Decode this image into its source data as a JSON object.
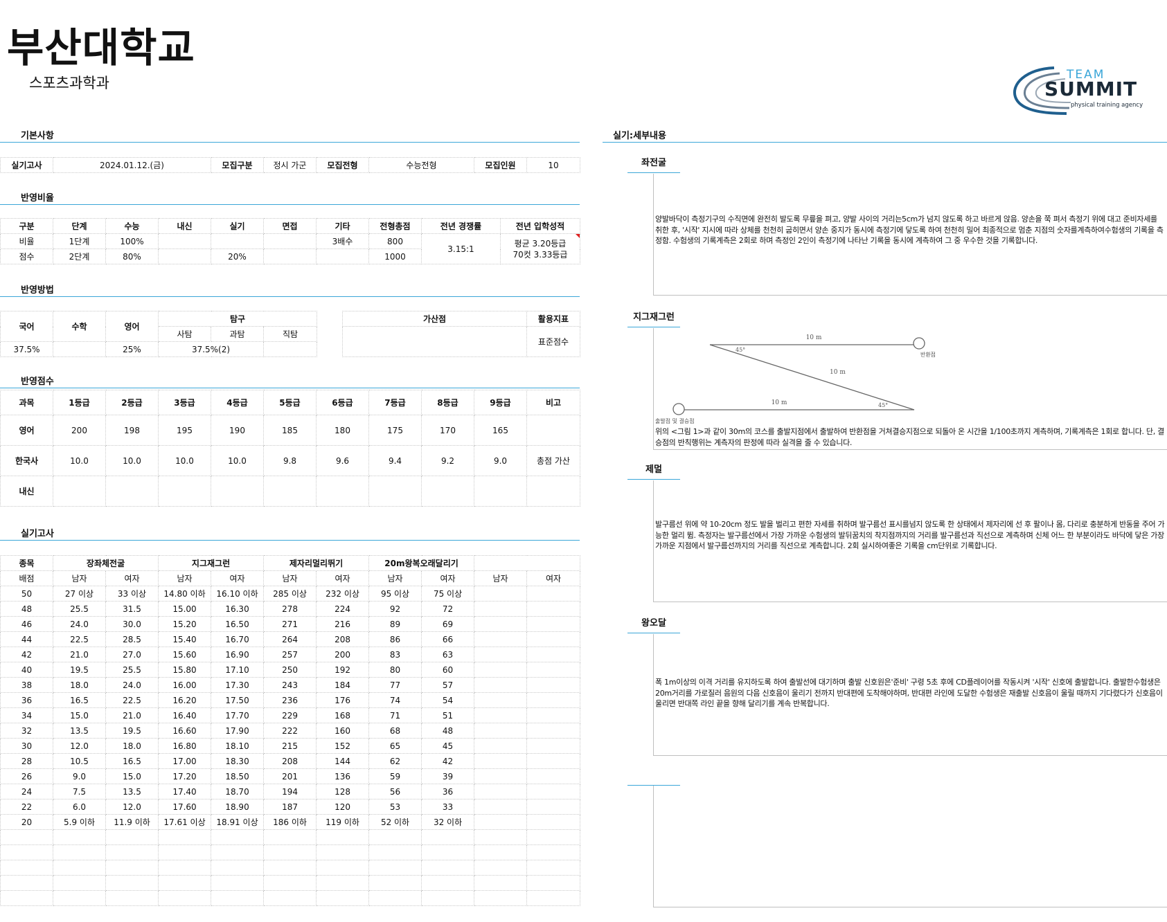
{
  "university": "부산대학교",
  "department": "스포츠과학과",
  "logo": {
    "line1": "TEAM",
    "line2": "SUMMIT",
    "line3": "physical training agency",
    "icon": "swoosh-icon"
  },
  "colors": {
    "accent": "#3aa6d8",
    "text": "#111111",
    "logo_blue": "#1f5f8e"
  },
  "sections": {
    "basic": "기본사항",
    "ratio": "반영비율",
    "method": "반영방법",
    "score": "반영점수",
    "practical": "실기고사",
    "details": "실기:세부내용"
  },
  "basic": {
    "exam_label": "실기고사",
    "exam_value": "2024.01.12.(금)",
    "type_label": "모집구분",
    "type_value": "정시 가군",
    "track_label": "모집전형",
    "track_value": "수능전형",
    "quota_label": "모집인원",
    "quota_value": "10"
  },
  "ratio": {
    "headers": [
      "구분",
      "단계",
      "수능",
      "내신",
      "실기",
      "면접",
      "기타",
      "전형총점",
      "전년 경쟁률",
      "전년 입학성적"
    ],
    "row1": {
      "label": "비율",
      "stage": "1단계",
      "suneung": "100%",
      "naesin": "",
      "silgi": "",
      "interview": "",
      "etc": "3배수",
      "total": "800"
    },
    "row2": {
      "label": "점수",
      "stage": "2단계",
      "suneung": "80%",
      "naesin": "",
      "silgi": "20%",
      "interview": "",
      "etc": "",
      "total": "1000"
    },
    "competition": "3.15:1",
    "grade1": "평균 3.20등급",
    "grade2": "70컷 3.33등급"
  },
  "method": {
    "korean": "국어",
    "math": "수학",
    "english": "영어",
    "inquiry": "탐구",
    "social": "사탐",
    "science": "과탐",
    "vocational": "직탐",
    "korean_val": "37.5%",
    "math_val": "",
    "english_val": "25%",
    "inquiry_val": "37.5%(2)",
    "bonus_label": "가산점",
    "index_label": "활용지표",
    "index_val": "표준점수"
  },
  "score": {
    "headers": [
      "과목",
      "1등급",
      "2등급",
      "3등급",
      "4등급",
      "5등급",
      "6등급",
      "7등급",
      "8등급",
      "9등급",
      "비고"
    ],
    "rows": [
      [
        "영어",
        "200",
        "198",
        "195",
        "190",
        "185",
        "180",
        "175",
        "170",
        "165",
        ""
      ],
      [
        "한국사",
        "10.0",
        "10.0",
        "10.0",
        "10.0",
        "9.8",
        "9.6",
        "9.4",
        "9.2",
        "9.0",
        "총점 가산"
      ],
      [
        "내신",
        "",
        "",
        "",
        "",
        "",
        "",
        "",
        "",
        "",
        ""
      ]
    ]
  },
  "practical": {
    "event_label": "종목",
    "points_label": "배점",
    "events": [
      "장좌체전굴",
      "지그재그런",
      "제자리멀리뛰기",
      "20m왕복오래달리기",
      ""
    ],
    "male": "남자",
    "female": "여자",
    "rows": [
      [
        "50",
        "27 이상",
        "33 이상",
        "14.80 이하",
        "16.10 이하",
        "285 이상",
        "232 이상",
        "95 이상",
        "75 이상"
      ],
      [
        "48",
        "25.5",
        "31.5",
        "15.00",
        "16.30",
        "278",
        "224",
        "92",
        "72"
      ],
      [
        "46",
        "24.0",
        "30.0",
        "15.20",
        "16.50",
        "271",
        "216",
        "89",
        "69"
      ],
      [
        "44",
        "22.5",
        "28.5",
        "15.40",
        "16.70",
        "264",
        "208",
        "86",
        "66"
      ],
      [
        "42",
        "21.0",
        "27.0",
        "15.60",
        "16.90",
        "257",
        "200",
        "83",
        "63"
      ],
      [
        "40",
        "19.5",
        "25.5",
        "15.80",
        "17.10",
        "250",
        "192",
        "80",
        "60"
      ],
      [
        "38",
        "18.0",
        "24.0",
        "16.00",
        "17.30",
        "243",
        "184",
        "77",
        "57"
      ],
      [
        "36",
        "16.5",
        "22.5",
        "16.20",
        "17.50",
        "236",
        "176",
        "74",
        "54"
      ],
      [
        "34",
        "15.0",
        "21.0",
        "16.40",
        "17.70",
        "229",
        "168",
        "71",
        "51"
      ],
      [
        "32",
        "13.5",
        "19.5",
        "16.60",
        "17.90",
        "222",
        "160",
        "68",
        "48"
      ],
      [
        "30",
        "12.0",
        "18.0",
        "16.80",
        "18.10",
        "215",
        "152",
        "65",
        "45"
      ],
      [
        "28",
        "10.5",
        "16.5",
        "17.00",
        "18.30",
        "208",
        "144",
        "62",
        "42"
      ],
      [
        "26",
        "9.0",
        "15.0",
        "17.20",
        "18.50",
        "201",
        "136",
        "59",
        "39"
      ],
      [
        "24",
        "7.5",
        "13.5",
        "17.40",
        "18.70",
        "194",
        "128",
        "56",
        "36"
      ],
      [
        "22",
        "6.0",
        "12.0",
        "17.60",
        "18.90",
        "187",
        "120",
        "53",
        "33"
      ],
      [
        "20",
        "5.9 이하",
        "11.9 이하",
        "17.61 이상",
        "18.91 이상",
        "186 이하",
        "119 이하",
        "52 이하",
        "32 이하"
      ]
    ]
  },
  "details": {
    "sit_reach": {
      "title": "좌전굴",
      "text": "양발바닥이 측정기구의 수직면에 완전히 발도록 무릎을 펴고, 양발 사이의 거리는5cm가 넘지 않도록 하고 바르게 앉음. 양손을 쭉 펴서 측정기 위에 대고 준비자세를 취한 후, '시작' 지시에 따라 상체를 천천히 굽히면서 양손 중지가 동시에 측정기에 닿도록 하여 천천히 밀어 최종적으로 멈춘 지점의 숫자를계측하여수험생의 기록을 측정함. 수험생의 기록계측은 2회로 하며 측정인 2인이 측정기에 나타난 기록을 동시에 계측하여 그 중 우수한 것을 기록합니다."
    },
    "zigzag": {
      "title": "지그재그런",
      "dist_top": "10 m",
      "dist_mid": "10 m",
      "dist_bottom": "10 m",
      "angle_top": "45°",
      "angle_bottom": "45°",
      "turn_label": "반환점",
      "start_label": "출발점 및 결승점",
      "text": "위의 <그림 1>과 같이 30m의 코스를 출발지점에서 출발하여 반환점을 거쳐결승지점으로 되돌아 온 시간을 1/100초까지 계측하며, 기록계측은 1회로 합니다. 단, 결승점의 반칙행위는 계측자의 판정에 따라 실격을 줄 수 있습니다."
    },
    "long_jump": {
      "title": "제멀",
      "text": "발구름선 위에 약 10-20cm 정도 발을 벌리고 편한 자세를 취하며 발구름선 표시를넘지 않도록 한 상태에서 제자리에 선 후 팔이나 몸, 다리로 충분하게 반동을 주어 가능한 멀리 뜀. 측정자는 발구름선에서 가장 가까운 수험생의 발뒤꿈치의 착지점까지의 거리를 발구름선과 직선으로 계측하며 신체 어느 한 부분이라도 바닥에 닿은 가장 가까운 지점에서 발구름선까지의 거리를 직선으로 계측합니다. 2회 실시하여좋은 기록을 cm단위로 기록합니다."
    },
    "shuttle": {
      "title": "왕오달",
      "text": "폭 1m이상의 이격 거리를 유지하도록 하여 출발선에 대기하며 출발 신호원은'준비' 구령 5초 후에 CD플레이어를 작동시켜 '시작' 신호에 출발합니다. 출발한수험생은 20m거리를 가로질러 음원의 다음 신호음이 울리기 전까지 반대편에 도착해야하며, 반대편 라인에 도달한 수험생은 재출발 신호음이 울릴 때까지 기다렸다가 신호음이 울리면 반대쪽 라인 끝을 향해 달리기를 계속 반복합니다."
    }
  }
}
